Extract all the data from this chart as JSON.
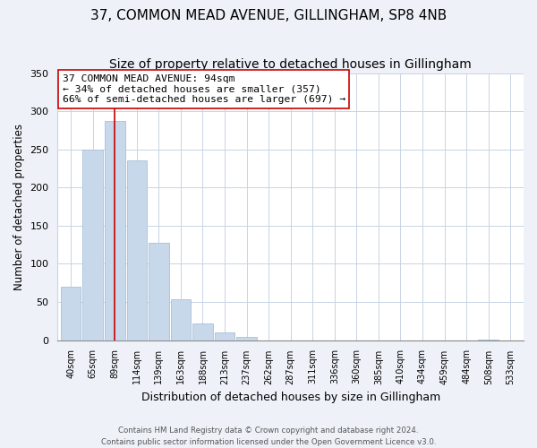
{
  "title": "37, COMMON MEAD AVENUE, GILLINGHAM, SP8 4NB",
  "subtitle": "Size of property relative to detached houses in Gillingham",
  "xlabel": "Distribution of detached houses by size in Gillingham",
  "ylabel": "Number of detached properties",
  "bar_labels": [
    "40sqm",
    "65sqm",
    "89sqm",
    "114sqm",
    "139sqm",
    "163sqm",
    "188sqm",
    "213sqm",
    "237sqm",
    "262sqm",
    "287sqm",
    "311sqm",
    "336sqm",
    "360sqm",
    "385sqm",
    "410sqm",
    "434sqm",
    "459sqm",
    "484sqm",
    "508sqm",
    "533sqm"
  ],
  "bar_values": [
    70,
    250,
    287,
    235,
    128,
    54,
    22,
    10,
    4,
    0,
    0,
    0,
    0,
    0,
    0,
    0,
    0,
    0,
    0,
    1,
    0
  ],
  "bar_color": "#c8d8eb",
  "bar_edge_color": "#a8c0d8",
  "vline_x_index": 2,
  "vline_color": "#cc0000",
  "annotation_title": "37 COMMON MEAD AVENUE: 94sqm",
  "annotation_line1": "← 34% of detached houses are smaller (357)",
  "annotation_line2": "66% of semi-detached houses are larger (697) →",
  "annotation_box_color": "#ffffff",
  "annotation_box_edge": "#cc0000",
  "ylim": [
    0,
    350
  ],
  "yticks": [
    0,
    50,
    100,
    150,
    200,
    250,
    300,
    350
  ],
  "footer1": "Contains HM Land Registry data © Crown copyright and database right 2024.",
  "footer2": "Contains public sector information licensed under the Open Government Licence v3.0.",
  "bg_color": "#eef2f8",
  "plot_bg_color": "#ffffff",
  "grid_color": "#c8d4e4",
  "title_fontsize": 11,
  "subtitle_fontsize": 10
}
